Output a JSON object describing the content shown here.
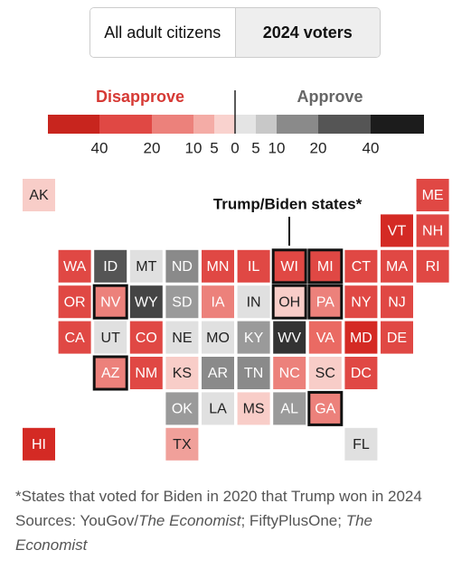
{
  "toggle": {
    "options": [
      "All adult citizens",
      "2024 voters"
    ],
    "selected": 1
  },
  "legend": {
    "disapprove_label": "Disapprove",
    "approve_label": "Approve",
    "disapprove_colors": [
      "#c8251e",
      "#e04844",
      "#ec817b",
      "#f4aca6",
      "#f9d2ce"
    ],
    "approve_colors": [
      "#e4e4e4",
      "#c8c8c8",
      "#8a8a8a",
      "#555555",
      "#1c1c1c"
    ],
    "disapprove_ticks": [
      40,
      20,
      10,
      5,
      0
    ],
    "approve_ticks": [
      5,
      10,
      20,
      40
    ]
  },
  "annotation": "Trump/Biden states*",
  "states": [
    {
      "label": "AK",
      "color": "#f8cdc8",
      "highlighted": false
    },
    {
      "label": "ME",
      "color": "#e04844",
      "highlighted": false
    },
    {
      "label": "VT",
      "color": "#d42a24",
      "highlighted": false
    },
    {
      "label": "NH",
      "color": "#e04844",
      "highlighted": false
    },
    {
      "label": "WA",
      "color": "#e04844",
      "highlighted": false
    },
    {
      "label": "ID",
      "color": "#555555",
      "highlighted": false
    },
    {
      "label": "MT",
      "color": "#e0e0e0",
      "highlighted": false
    },
    {
      "label": "ND",
      "color": "#8a8a8a",
      "highlighted": false
    },
    {
      "label": "MN",
      "color": "#e04844",
      "highlighted": false
    },
    {
      "label": "IL",
      "color": "#e04844",
      "highlighted": false
    },
    {
      "label": "WI",
      "color": "#e04844",
      "highlighted": true
    },
    {
      "label": "MI",
      "color": "#e04844",
      "highlighted": true
    },
    {
      "label": "CT",
      "color": "#e04844",
      "highlighted": false
    },
    {
      "label": "MA",
      "color": "#e04844",
      "highlighted": false
    },
    {
      "label": "RI",
      "color": "#e04844",
      "highlighted": false
    },
    {
      "label": "OR",
      "color": "#e04844",
      "highlighted": false
    },
    {
      "label": "NV",
      "color": "#ec817b",
      "highlighted": true
    },
    {
      "label": "WY",
      "color": "#444444",
      "highlighted": false
    },
    {
      "label": "SD",
      "color": "#9a9a9a",
      "highlighted": false
    },
    {
      "label": "IA",
      "color": "#ec817b",
      "highlighted": false
    },
    {
      "label": "IN",
      "color": "#e0e0e0",
      "highlighted": false
    },
    {
      "label": "OH",
      "color": "#f8cdc8",
      "highlighted": true
    },
    {
      "label": "PA",
      "color": "#ec817b",
      "highlighted": true
    },
    {
      "label": "NY",
      "color": "#e04844",
      "highlighted": false
    },
    {
      "label": "NJ",
      "color": "#e04844",
      "highlighted": false
    },
    {
      "label": "CA",
      "color": "#e04844",
      "highlighted": false
    },
    {
      "label": "UT",
      "color": "#e0e0e0",
      "highlighted": false
    },
    {
      "label": "CO",
      "color": "#e04844",
      "highlighted": false
    },
    {
      "label": "NE",
      "color": "#e0e0e0",
      "highlighted": false
    },
    {
      "label": "MO",
      "color": "#e0e0e0",
      "highlighted": false
    },
    {
      "label": "KY",
      "color": "#9a9a9a",
      "highlighted": false
    },
    {
      "label": "WV",
      "color": "#333333",
      "highlighted": false
    },
    {
      "label": "VA",
      "color": "#ea6a63",
      "highlighted": false
    },
    {
      "label": "MD",
      "color": "#d42a24",
      "highlighted": false
    },
    {
      "label": "DE",
      "color": "#e04844",
      "highlighted": false
    },
    {
      "label": "AZ",
      "color": "#ec817b",
      "highlighted": true
    },
    {
      "label": "NM",
      "color": "#e04844",
      "highlighted": false
    },
    {
      "label": "KS",
      "color": "#f8cdc8",
      "highlighted": false
    },
    {
      "label": "AR",
      "color": "#8a8a8a",
      "highlighted": false
    },
    {
      "label": "TN",
      "color": "#8a8a8a",
      "highlighted": false
    },
    {
      "label": "NC",
      "color": "#ec817b",
      "highlighted": false
    },
    {
      "label": "SC",
      "color": "#f8cdc8",
      "highlighted": false
    },
    {
      "label": "DC",
      "color": "#e04844",
      "highlighted": false
    },
    {
      "label": "OK",
      "color": "#9a9a9a",
      "highlighted": false
    },
    {
      "label": "LA",
      "color": "#e0e0e0",
      "highlighted": false
    },
    {
      "label": "MS",
      "color": "#f8cdc8",
      "highlighted": false
    },
    {
      "label": "AL",
      "color": "#9a9a9a",
      "highlighted": false
    },
    {
      "label": "GA",
      "color": "#ec817b",
      "highlighted": true
    },
    {
      "label": "HI",
      "color": "#d42a24",
      "highlighted": false
    },
    {
      "label": "TX",
      "color": "#f0a09a",
      "highlighted": false
    },
    {
      "label": "FL",
      "color": "#e0e0e0",
      "highlighted": false
    }
  ],
  "footnote": "*States that voted for Biden in 2020 that Trump won in 2024",
  "sources": [
    {
      "text": "Sources: YouGov/",
      "italic": false
    },
    {
      "text": "The Economist",
      "italic": true
    },
    {
      "text": "; FiftyPlusOne; ",
      "italic": false
    },
    {
      "text": "The Economist",
      "italic": true
    }
  ]
}
